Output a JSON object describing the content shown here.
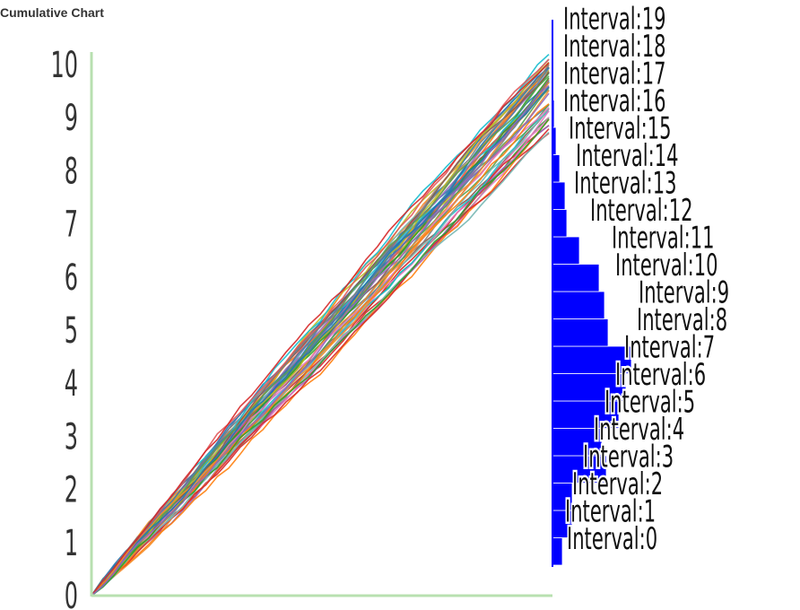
{
  "chart_data": {
    "title": "Cumulative Chart",
    "type": "line",
    "yticks": [
      "0",
      "1",
      "2",
      "3",
      "4",
      "5",
      "6",
      "7",
      "8",
      "9",
      "10"
    ],
    "ylim": [
      0,
      10.2
    ],
    "series_count": 50,
    "x_steps": 40,
    "end_range": [
      8.7,
      10.2
    ],
    "histogram": {
      "type": "bar",
      "orientation": "horizontal",
      "bar_color": "#0000ff",
      "labels": [
        "Interval:0",
        "Interval:1",
        "Interval:2",
        "Interval:3",
        "Interval:4",
        "Interval:5",
        "Interval:6",
        "Interval:7",
        "Interval:8",
        "Interval:9",
        "Interval:10",
        "Interval:11",
        "Interval:12",
        "Interval:13",
        "Interval:14",
        "Interval:15",
        "Interval:16",
        "Interval:17",
        "Interval:18",
        "Interval:19"
      ],
      "values": [
        11,
        22,
        22,
        60,
        55,
        74,
        82,
        88,
        62,
        58,
        52,
        30,
        16,
        14,
        8,
        4,
        2,
        1,
        0,
        0
      ]
    }
  }
}
